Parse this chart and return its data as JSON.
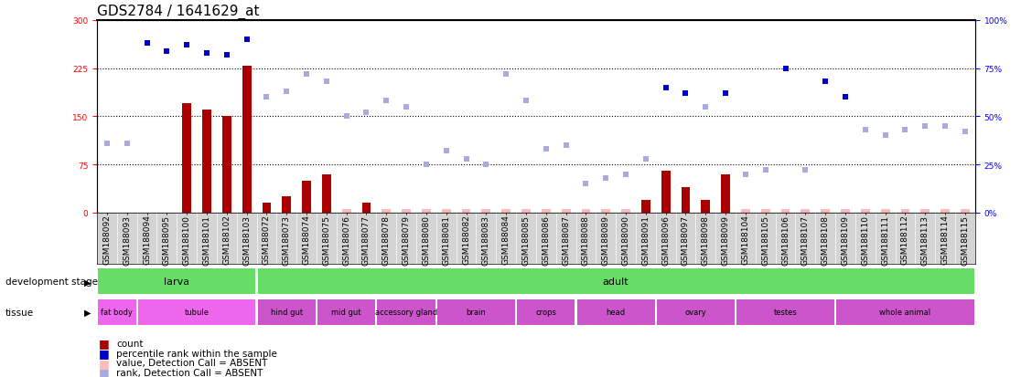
{
  "title": "GDS2784 / 1641629_at",
  "samples": [
    "GSM188092",
    "GSM188093",
    "GSM188094",
    "GSM188095",
    "GSM188100",
    "GSM188101",
    "GSM188102",
    "GSM188103",
    "GSM188072",
    "GSM188073",
    "GSM188074",
    "GSM188075",
    "GSM188076",
    "GSM188077",
    "GSM188078",
    "GSM188079",
    "GSM188080",
    "GSM188081",
    "GSM188082",
    "GSM188083",
    "GSM188084",
    "GSM188085",
    "GSM188086",
    "GSM188087",
    "GSM188088",
    "GSM188089",
    "GSM188090",
    "GSM188091",
    "GSM188096",
    "GSM188097",
    "GSM188098",
    "GSM188099",
    "GSM188104",
    "GSM188105",
    "GSM188106",
    "GSM188107",
    "GSM188108",
    "GSM188109",
    "GSM188110",
    "GSM188111",
    "GSM188112",
    "GSM188113",
    "GSM188114",
    "GSM188115"
  ],
  "counts": [
    0,
    0,
    0,
    0,
    170,
    160,
    150,
    228,
    15,
    25,
    50,
    60,
    0,
    15,
    0,
    0,
    0,
    0,
    0,
    0,
    0,
    0,
    0,
    0,
    0,
    0,
    0,
    20,
    65,
    40,
    20,
    60,
    0,
    0,
    0,
    0,
    0,
    0,
    0,
    0,
    0,
    0,
    0,
    0
  ],
  "ranks": [
    0,
    0,
    88,
    84,
    87,
    83,
    82,
    90,
    0,
    0,
    0,
    0,
    0,
    0,
    0,
    0,
    0,
    0,
    0,
    0,
    0,
    0,
    0,
    0,
    0,
    0,
    0,
    0,
    65,
    62,
    0,
    62,
    0,
    0,
    75,
    0,
    68,
    60,
    0,
    0,
    0,
    0,
    0,
    0
  ],
  "absent_counts": [
    0,
    0,
    0,
    0,
    0,
    0,
    0,
    0,
    0,
    0,
    0,
    0,
    0,
    0,
    0,
    0,
    0,
    0,
    0,
    0,
    0,
    0,
    0,
    0,
    0,
    0,
    0,
    0,
    0,
    0,
    0,
    0,
    0,
    0,
    0,
    0,
    0,
    0,
    0,
    0,
    0,
    0,
    0,
    0
  ],
  "absent_ranks": [
    36,
    36,
    0,
    0,
    0,
    0,
    0,
    0,
    60,
    63,
    72,
    68,
    50,
    52,
    58,
    55,
    25,
    32,
    28,
    25,
    72,
    58,
    33,
    35,
    15,
    18,
    20,
    28,
    0,
    0,
    55,
    0,
    20,
    22,
    0,
    22,
    0,
    0,
    43,
    40,
    43,
    45,
    45,
    42
  ],
  "absent_bar_vals": [
    0,
    0,
    0,
    0,
    0,
    0,
    0,
    0,
    14,
    24,
    48,
    58,
    5,
    14,
    5,
    5,
    5,
    5,
    5,
    5,
    5,
    5,
    5,
    5,
    5,
    5,
    5,
    0,
    0,
    0,
    18,
    0,
    5,
    5,
    5,
    5,
    5,
    5,
    5,
    5,
    5,
    5,
    5,
    5
  ],
  "yticks_left": [
    0,
    75,
    150,
    225,
    300
  ],
  "yticks_right": [
    0,
    25,
    50,
    75,
    100
  ],
  "bar_color": "#aa0000",
  "rank_color": "#0000cc",
  "absent_bar_color": "#ffbbbb",
  "absent_rank_color": "#aaaadd",
  "title_fontsize": 11,
  "tick_fontsize": 6.5,
  "label_fontsize": 8,
  "dev_stage_spans": [
    {
      "label": "larva",
      "start": 0,
      "end": 8
    },
    {
      "label": "adult",
      "start": 8,
      "end": 44
    }
  ],
  "tissue_groups": [
    {
      "label": "fat body",
      "start": 0,
      "end": 2,
      "bright": true
    },
    {
      "label": "tubule",
      "start": 2,
      "end": 8,
      "bright": true
    },
    {
      "label": "hind gut",
      "start": 8,
      "end": 11,
      "bright": false
    },
    {
      "label": "mid gut",
      "start": 11,
      "end": 14,
      "bright": false
    },
    {
      "label": "accessory gland",
      "start": 14,
      "end": 17,
      "bright": false
    },
    {
      "label": "brain",
      "start": 17,
      "end": 21,
      "bright": false
    },
    {
      "label": "crops",
      "start": 21,
      "end": 24,
      "bright": false
    },
    {
      "label": "head",
      "start": 24,
      "end": 28,
      "bright": false
    },
    {
      "label": "ovary",
      "start": 28,
      "end": 32,
      "bright": false
    },
    {
      "label": "testes",
      "start": 32,
      "end": 37,
      "bright": false
    },
    {
      "label": "whole animal",
      "start": 37,
      "end": 44,
      "bright": false
    }
  ],
  "legend_items": [
    {
      "color": "#aa0000",
      "label": "count"
    },
    {
      "color": "#0000cc",
      "label": "percentile rank within the sample"
    },
    {
      "color": "#ffbbbb",
      "label": "value, Detection Call = ABSENT"
    },
    {
      "color": "#aaaadd",
      "label": "rank, Detection Call = ABSENT"
    }
  ]
}
